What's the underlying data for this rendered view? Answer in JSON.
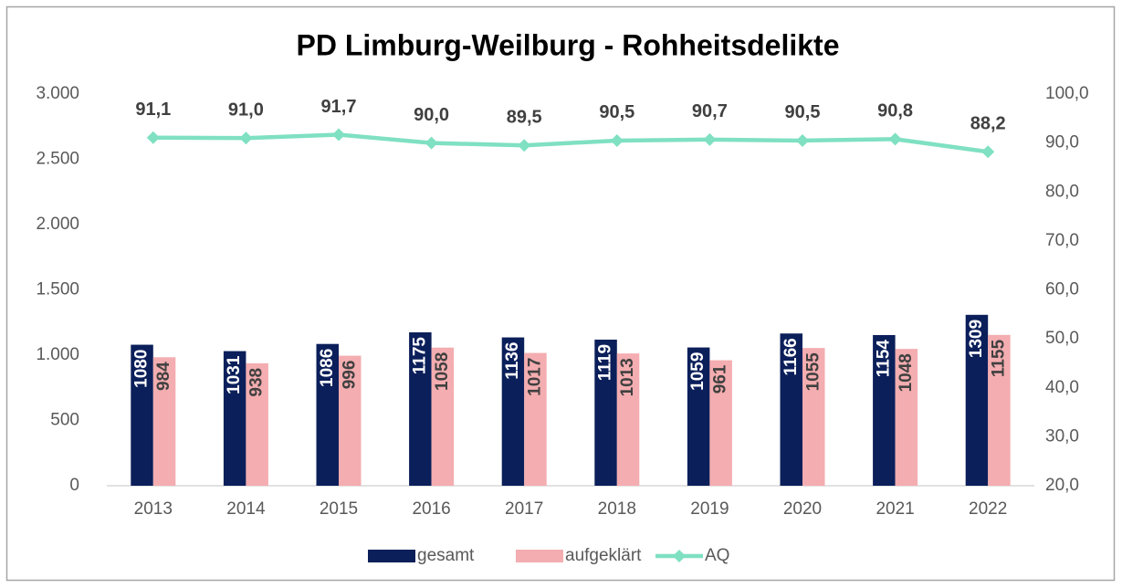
{
  "chart_data": {
    "type": "bar",
    "title": "PD Limburg-Weilburg - Rohheitsdelikte",
    "categories": [
      "2013",
      "2014",
      "2015",
      "2016",
      "2017",
      "2018",
      "2019",
      "2020",
      "2021",
      "2022"
    ],
    "series": [
      {
        "name": "gesamt",
        "type": "bar",
        "color": "#0b1f5a",
        "values": [
          1080,
          1031,
          1086,
          1175,
          1136,
          1119,
          1059,
          1166,
          1154,
          1309
        ]
      },
      {
        "name": "aufgeklärt",
        "type": "bar",
        "color": "#f4adb0",
        "values": [
          984,
          938,
          996,
          1058,
          1017,
          1013,
          961,
          1055,
          1048,
          1155
        ]
      },
      {
        "name": "AQ",
        "type": "line",
        "axis": "y2",
        "color": "#7fe0c2",
        "values": [
          91.1,
          91.0,
          91.7,
          90.0,
          89.5,
          90.5,
          90.7,
          90.5,
          90.8,
          88.2
        ],
        "value_labels": [
          "91,1",
          "91,0",
          "91,7",
          "90,0",
          "89,5",
          "90,5",
          "90,7",
          "90,5",
          "90,8",
          "88,2"
        ]
      }
    ],
    "ylim": [
      0,
      3000
    ],
    "yticks": [
      0,
      500,
      {
        "value": 1000,
        "label": "1.000"
      },
      {
        "value": 1500,
        "label": "1.500"
      },
      {
        "value": 2000,
        "label": "2.000"
      },
      {
        "value": 2500,
        "label": "2.500"
      },
      {
        "value": 3000,
        "label": "3.000"
      }
    ],
    "y2lim": [
      20,
      100
    ],
    "y2ticks": [
      {
        "value": 20,
        "label": "20,0"
      },
      {
        "value": 30,
        "label": "30,0"
      },
      {
        "value": 40,
        "label": "40,0"
      },
      {
        "value": 50,
        "label": "50,0"
      },
      {
        "value": 60,
        "label": "60,0"
      },
      {
        "value": 70,
        "label": "70,0"
      },
      {
        "value": 80,
        "label": "80,0"
      },
      {
        "value": 90,
        "label": "90,0"
      },
      {
        "value": 100,
        "label": "100,0"
      }
    ],
    "grid": false,
    "legend": "bottom"
  }
}
